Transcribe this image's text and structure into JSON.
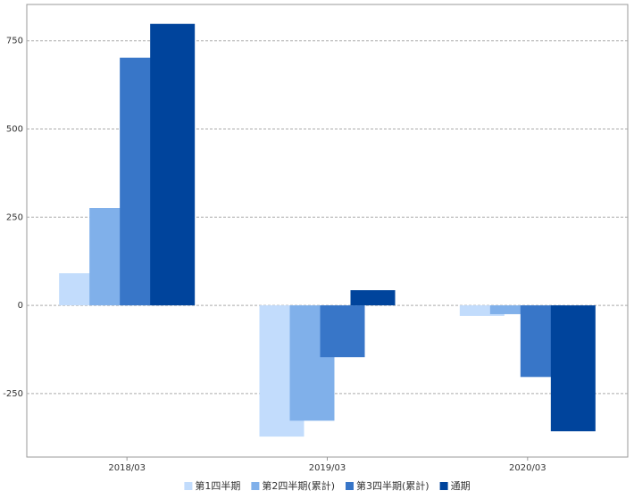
{
  "chart_data": {
    "type": "bar",
    "categories": [
      "2018/03",
      "2019/03",
      "2020/03"
    ],
    "series": [
      {
        "name": "第1四半期",
        "color": "#c2dcfc",
        "values": [
          91,
          -372,
          -30
        ]
      },
      {
        "name": "第2四半期(累計)",
        "color": "#80b0ea",
        "values": [
          276,
          -327,
          -25
        ]
      },
      {
        "name": "第3四半期(累計)",
        "color": "#3876c8",
        "values": [
          702,
          -147,
          -203
        ]
      },
      {
        "name": "通期",
        "color": "#00449c",
        "values": [
          798,
          43,
          -357
        ]
      }
    ],
    "ylim": [
      -430,
      853
    ],
    "yticks": [
      -250,
      0,
      250,
      500,
      750
    ],
    "grid": true,
    "legend": "bottom"
  }
}
